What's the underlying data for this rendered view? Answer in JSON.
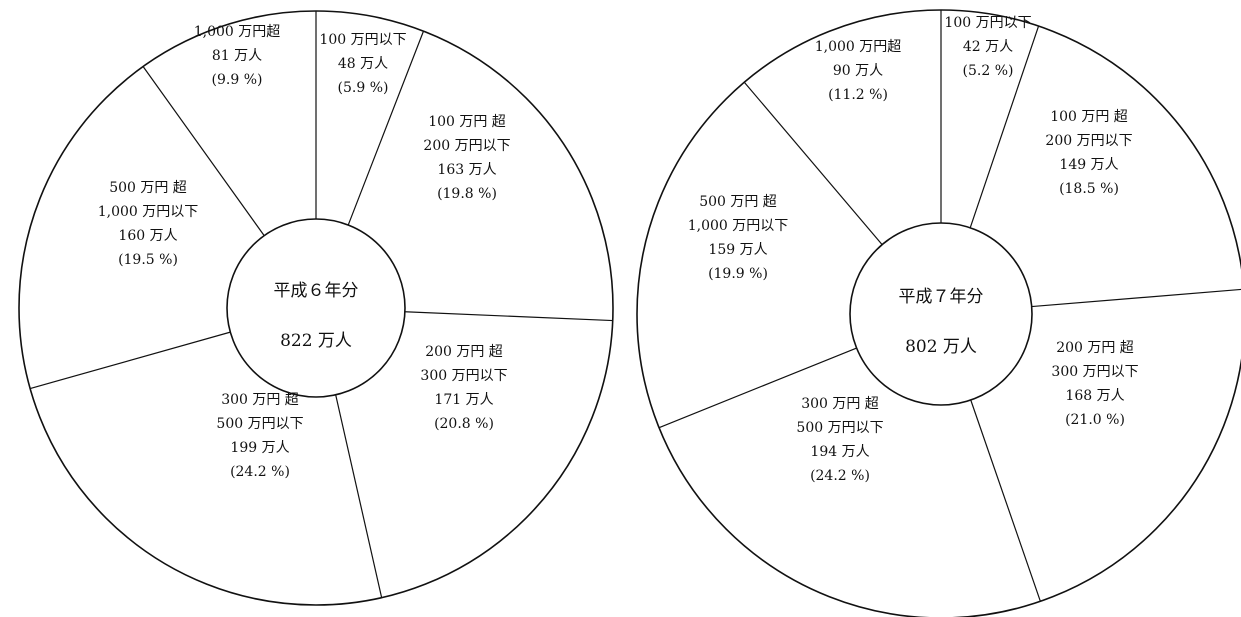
{
  "chart_data": [
    {
      "type": "pie",
      "center_label": "平成６年分",
      "total": "822 万人",
      "categories": [
        "100 万円以下",
        "100 万円 超 200 万円以下",
        "200 万円 超 300 万円以下",
        "300 万円 超 500 万円以下",
        "500 万円 超 1,000 万円以下",
        "1,000 万円超"
      ],
      "values": [
        5.9,
        19.8,
        20.8,
        24.2,
        19.5,
        9.9
      ],
      "slices": [
        {
          "lines": [
            "100 万円以下",
            "48 万人",
            "(5.9 %)"
          ]
        },
        {
          "lines": [
            "100 万円 超",
            "200 万円以下",
            "163 万人",
            "(19.8 %)"
          ]
        },
        {
          "lines": [
            "200 万円 超",
            "300 万円以下",
            "171 万人",
            "(20.8 %)"
          ]
        },
        {
          "lines": [
            "300 万円 超",
            "500 万円以下",
            "199 万人",
            "(24.2 %)"
          ]
        },
        {
          "lines": [
            "500 万円 超",
            "1,000 万円以下",
            "160 万人",
            "(19.5 %)"
          ]
        },
        {
          "lines": [
            "1,000 万円超",
            "81 万人",
            "(9.9 %)"
          ]
        }
      ]
    },
    {
      "type": "pie",
      "center_label": "平成７年分",
      "total": "802 万人",
      "categories": [
        "100 万円以下",
        "100 万円 超 200 万円以下",
        "200 万円 超 300 万円以下",
        "300 万円 超 500 万円以下",
        "500 万円 超 1,000 万円以下",
        "1,000 万円超"
      ],
      "values": [
        5.2,
        18.5,
        21.0,
        24.2,
        19.9,
        11.2
      ],
      "slices": [
        {
          "lines": [
            "100 万円以下",
            "42 万人",
            "(5.2 %)"
          ]
        },
        {
          "lines": [
            "100 万円 超",
            "200 万円以下",
            "149 万人",
            "(18.5 %)"
          ]
        },
        {
          "lines": [
            "200 万円 超",
            "300 万円以下",
            "168 万人",
            "(21.0 %)"
          ]
        },
        {
          "lines": [
            "300 万円 超",
            "500 万円以下",
            "194 万人",
            "(24.2 %)"
          ]
        },
        {
          "lines": [
            "500 万円 超",
            "1,000 万円以下",
            "159 万人",
            "(19.9 %)"
          ]
        },
        {
          "lines": [
            "1,000 万円超",
            "90 万人",
            "(11.2 %)"
          ]
        }
      ]
    }
  ]
}
